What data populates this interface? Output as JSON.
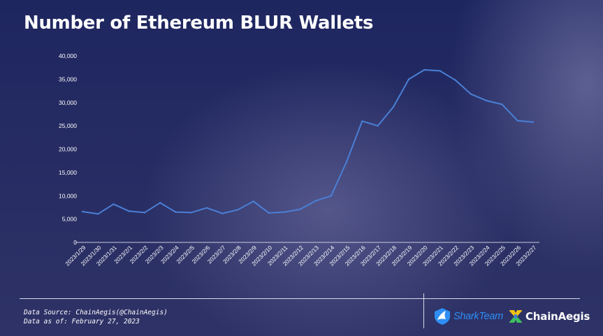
{
  "page": {
    "title": "Number of Ethereum BLUR Wallets",
    "source_line": "Data Source: ChainAegis(@ChainAegis)",
    "date_line": "Data as of: February 27, 2023"
  },
  "logos": {
    "sharkteam": "SharkTeam",
    "chainaegis": "ChainAegis",
    "sharkteam_icon": "shark-fin-icon",
    "chainaegis_icon": "chainaegis-emblem-icon"
  },
  "colors": {
    "line": "#4a7fd6",
    "text": "#ffffff",
    "sharkteam_blue": "#2e8ef5",
    "chainaegis_yellow": "#f3c316",
    "chainaegis_green": "#3fbf5f"
  },
  "chart_data": {
    "type": "line",
    "title": "Number of Ethereum BLUR Wallets",
    "xlabel": "",
    "ylabel": "",
    "ylim": [
      0,
      40000
    ],
    "yticks": [
      "0",
      "5,000",
      "10,000",
      "15,000",
      "20,000",
      "25,000",
      "30,000",
      "35,000",
      "40,000"
    ],
    "ytick_values": [
      0,
      5000,
      10000,
      15000,
      20000,
      25000,
      30000,
      35000,
      40000
    ],
    "grid": false,
    "legend": "none",
    "categories": [
      "2023/1/29",
      "2023/1/30",
      "2023/1/31",
      "2023/2/1",
      "2023/2/2",
      "2023/2/3",
      "2023/2/4",
      "2023/2/5",
      "2023/2/6",
      "2023/2/7",
      "2023/2/8",
      "2023/2/9",
      "2023/2/10",
      "2023/2/11",
      "2023/2/12",
      "2023/2/13",
      "2023/2/14",
      "2023/2/15",
      "2023/2/16",
      "2023/2/17",
      "2023/2/18",
      "2023/2/19",
      "2023/2/20",
      "2023/2/21",
      "2023/2/22",
      "2023/2/23",
      "2023/2/24",
      "2023/2/25",
      "2023/2/26",
      "2023/2/27"
    ],
    "values": [
      6600,
      6100,
      8200,
      6700,
      6400,
      8500,
      6500,
      6400,
      7400,
      6200,
      7000,
      8800,
      6300,
      6500,
      7100,
      8900,
      10000,
      17300,
      26000,
      25000,
      29000,
      35000,
      37000,
      36800,
      34800,
      31800,
      30400,
      29600,
      26100,
      25800
    ]
  }
}
